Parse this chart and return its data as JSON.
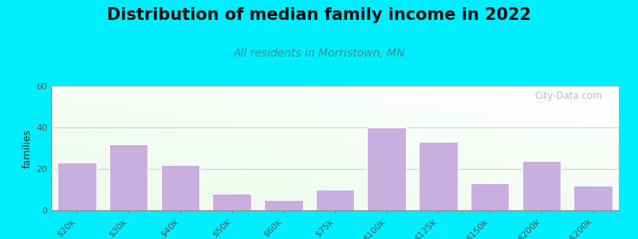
{
  "title": "Distribution of median family income in 2022",
  "subtitle": "All residents in Morristown, MN",
  "ylabel": "families",
  "categories": [
    "$20k",
    "$30k",
    "$40k",
    "$50k",
    "$60k",
    "$75k",
    "$100k",
    "$125k",
    "$150k",
    "$200k",
    "> $200k"
  ],
  "values": [
    23,
    32,
    22,
    8,
    5,
    10,
    40,
    33,
    13,
    24,
    12
  ],
  "bar_color": "#c9aee0",
  "bar_edge_color": "#ffffff",
  "ylim": [
    0,
    60
  ],
  "yticks": [
    0,
    20,
    40,
    60
  ],
  "background_color": "#00eeff",
  "title_fontsize": 15,
  "subtitle_fontsize": 10,
  "subtitle_color": "#3a9090",
  "watermark": "City-Data.com",
  "ylabel_fontsize": 9,
  "tick_label_color": "#555555",
  "grid_color": "#cccccc"
}
